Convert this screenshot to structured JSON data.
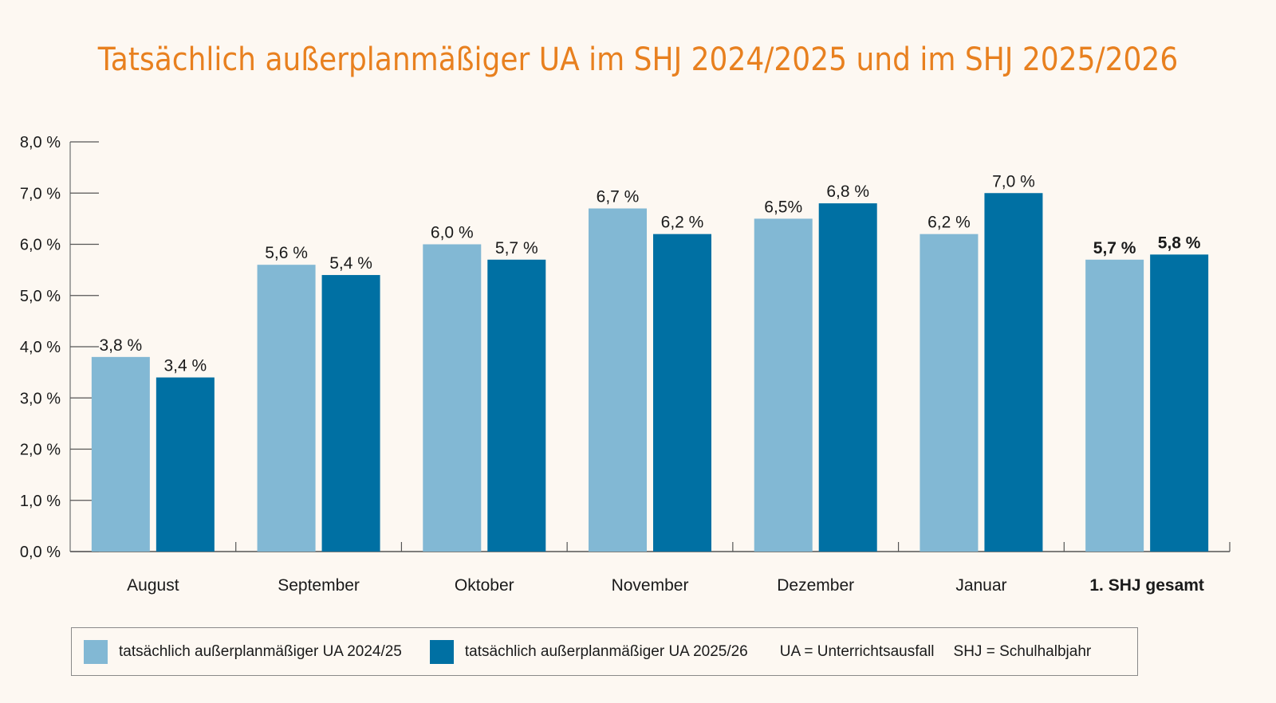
{
  "chart_data": {
    "type": "bar",
    "title": "Tatsächlich außerplanmäßiger UA im SHJ 2024/2025 und im SHJ 2025/2026",
    "xlabel": "",
    "ylabel": "",
    "ylim": [
      0,
      8
    ],
    "ytick_values": [
      0,
      1,
      2,
      3,
      4,
      5,
      6,
      7,
      8
    ],
    "ytick_labels": [
      "0,0 %",
      "1,0 %",
      "2,0 %",
      "3,0 %",
      "4,0 %",
      "5,0 %",
      "6,0 %",
      "7,0 %",
      "8,0 %"
    ],
    "categories": [
      "August",
      "September",
      "Oktober",
      "November",
      "Dezember",
      "Januar",
      "1. SHJ gesamt"
    ],
    "bold_categories": [
      "1. SHJ gesamt"
    ],
    "series": [
      {
        "name": "tatsächlich außerplanmäßiger UA 2024/25",
        "color": "#82b8d4",
        "values": [
          3.8,
          5.6,
          6.0,
          6.7,
          6.5,
          6.2,
          5.7
        ],
        "labels": [
          "3,8 %",
          "5,6 %",
          "6,0 %",
          "6,7 %",
          "6,5%",
          "6,2 %",
          "5,7 %"
        ]
      },
      {
        "name": "tatsächlich außerplanmäßiger UA 2025/26",
        "color": "#0070a3",
        "values": [
          3.4,
          5.4,
          5.7,
          6.2,
          6.8,
          7.0,
          5.8
        ],
        "labels": [
          "3,4 %",
          "5,4 %",
          "5,7 %",
          "6,2 %",
          "6,8 %",
          "7,0 %",
          "5,8 %"
        ]
      }
    ],
    "grid": false,
    "legend_position": "bottom"
  },
  "legend": {
    "notes": [
      "UA = Unterrichtsausfall",
      "SHJ = Schulhalbjahr"
    ]
  },
  "colors": {
    "title": "#e8801f",
    "background": "#fdf8f2",
    "axis": "#8a8a8a"
  }
}
